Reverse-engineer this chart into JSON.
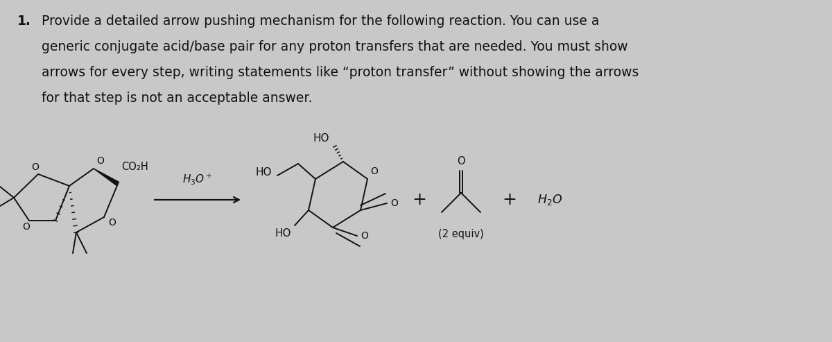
{
  "background_color": "#c8c8c8",
  "text_color": "#000000",
  "question_number": "1.",
  "line1": "Provide a detailed arrow pushing mechanism for the following reaction. You can use a",
  "line2": "generic conjugate acid/base pair for any proton transfers that are needed. You must show",
  "line3": "arrows for every step, writing statements like “proton transfer” without showing the arrows",
  "line4": "for that step is not an acceptable answer.",
  "reagent": "H₃O⁺",
  "two_equiv": "(2 equiv)",
  "water": "H₂O",
  "font_size_text": 13.5,
  "font_size_struct": 10.5
}
